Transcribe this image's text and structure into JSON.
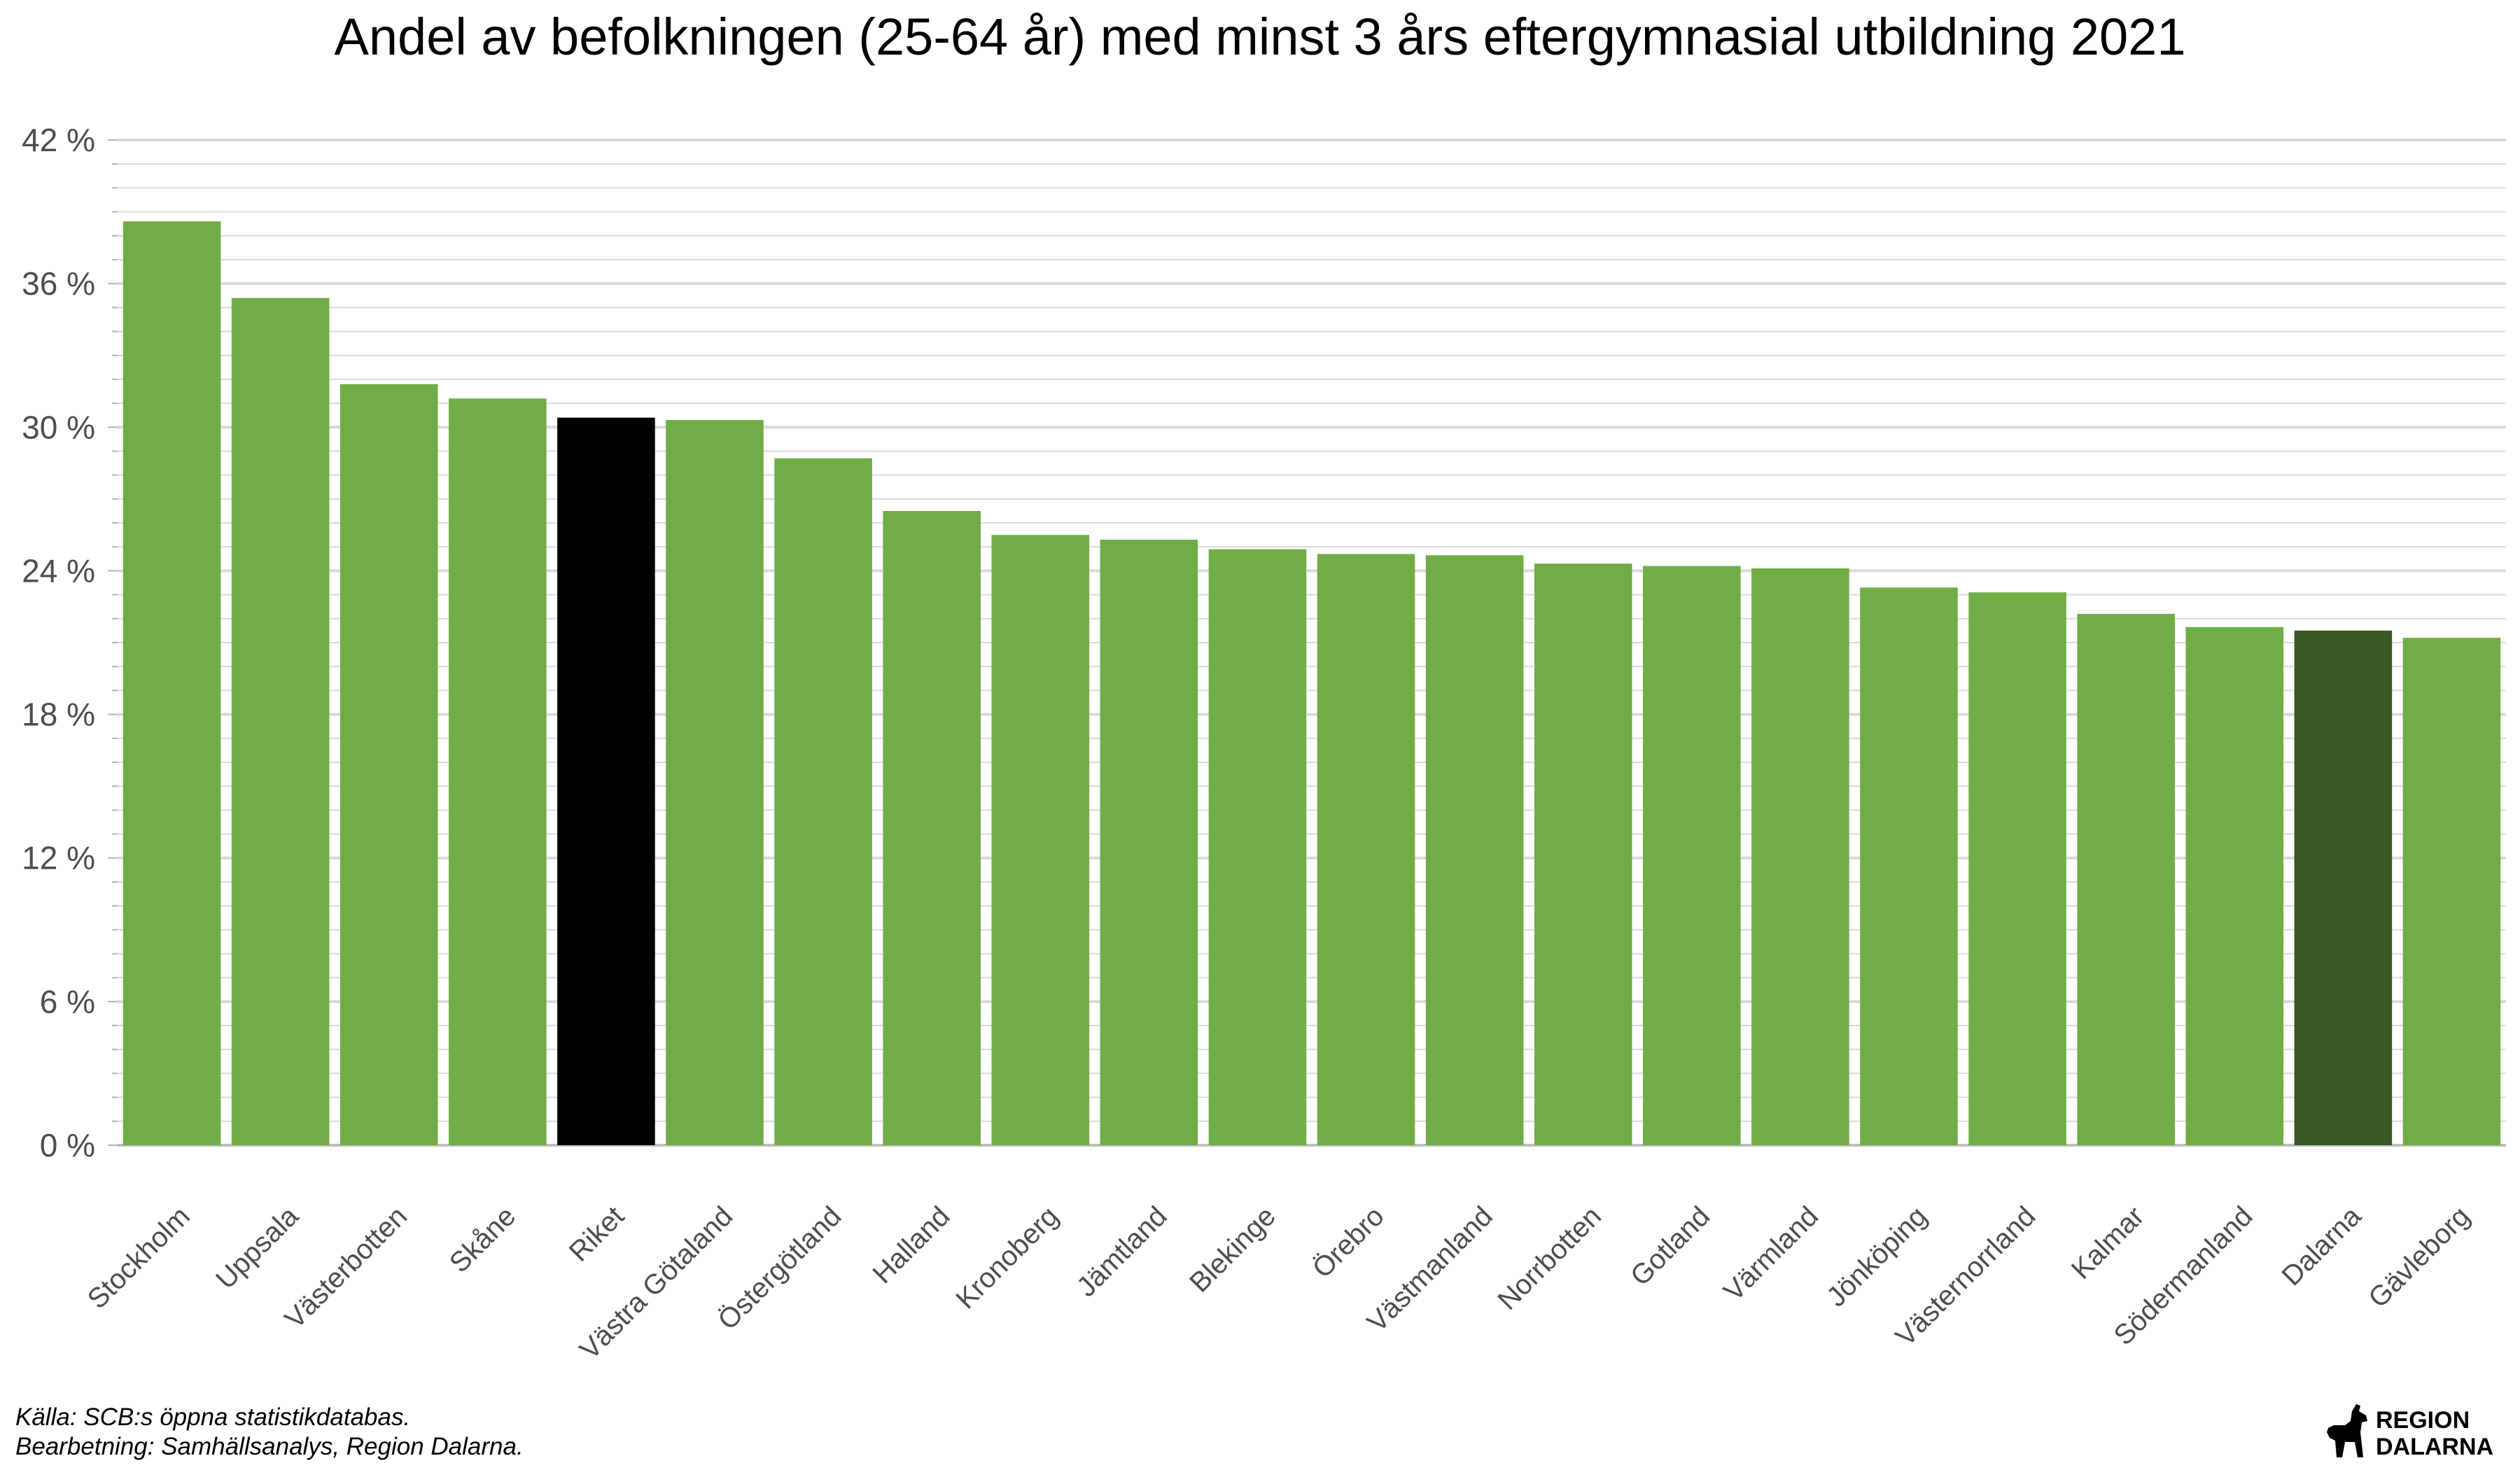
{
  "chart_data": {
    "type": "bar",
    "title": "Andel av befolkningen (25-64 år) med minst 3 års eftergymnasial utbildning 2021",
    "categories": [
      "Stockholm",
      "Uppsala",
      "Västerbotten",
      "Skåne",
      "Riket",
      "Västra Götaland",
      "Östergötland",
      "Halland",
      "Kronoberg",
      "Jämtland",
      "Blekinge",
      "Örebro",
      "Västmanland",
      "Norrbotten",
      "Gotland",
      "Värmland",
      "Jönköping",
      "Västernorrland",
      "Kalmar",
      "Södermanland",
      "Dalarna",
      "Gävleborg"
    ],
    "values": [
      38.6,
      35.4,
      31.8,
      31.2,
      30.4,
      30.3,
      28.7,
      26.5,
      25.5,
      25.3,
      24.9,
      24.7,
      24.65,
      24.3,
      24.2,
      24.1,
      23.3,
      23.1,
      22.2,
      21.65,
      21.5,
      21.2
    ],
    "ylim": [
      0,
      42
    ],
    "yticks": [
      0,
      6,
      12,
      18,
      24,
      30,
      36,
      42
    ],
    "ytick_labels": [
      "0 %",
      "6 %",
      "12 %",
      "18 %",
      "24 %",
      "30 %",
      "36 %",
      "42 %"
    ],
    "grid": true,
    "colors": {
      "default": "#70ad47",
      "Riket": "#000000",
      "Dalarna": "#385723",
      "grid": "#d9d9d9",
      "axis": "#bfbfbf"
    }
  },
  "caption": {
    "line1": "Källa: SCB:s öppna statistikdatabas.",
    "line2": "Bearbetning: Samhällsanalys, Region Dalarna."
  },
  "logo": {
    "line1": "REGION",
    "line2": "DALARNA",
    "icon": "dala-horse-icon"
  }
}
